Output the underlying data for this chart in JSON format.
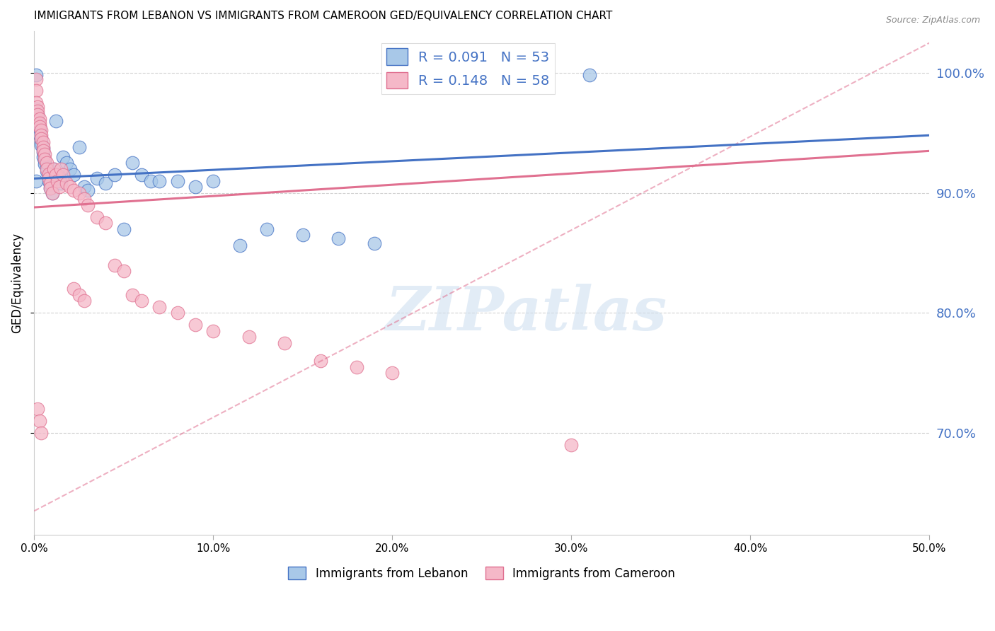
{
  "title": "IMMIGRANTS FROM LEBANON VS IMMIGRANTS FROM CAMEROON GED/EQUIVALENCY CORRELATION CHART",
  "source": "Source: ZipAtlas.com",
  "ylabel": "GED/Equivalency",
  "legend_lebanon": "Immigrants from Lebanon",
  "legend_cameroon": "Immigrants from Cameroon",
  "R_lebanon": 0.091,
  "N_lebanon": 53,
  "R_cameroon": 0.148,
  "N_cameroon": 58,
  "color_lebanon_fill": "#a8c8e8",
  "color_cameroon_fill": "#f5b8c8",
  "color_blue": "#4472c4",
  "color_pink": "#e07090",
  "color_axis_right": "#4472c4",
  "xmin": 0.0,
  "xmax": 0.5,
  "ymin": 0.615,
  "ymax": 1.035,
  "yticks": [
    0.7,
    0.8,
    0.9,
    1.0
  ],
  "blue_line_x": [
    0.0,
    0.5
  ],
  "blue_line_y": [
    0.912,
    0.948
  ],
  "pink_line_x": [
    0.0,
    0.5
  ],
  "pink_line_y": [
    0.888,
    0.935
  ],
  "dash_line_x": [
    0.0,
    0.5
  ],
  "dash_line_y": [
    0.635,
    1.025
  ],
  "watermark_text": "ZIPatlas",
  "figsize": [
    14.06,
    8.92
  ],
  "dpi": 100,
  "leb_x": [
    0.001,
    0.001,
    0.002,
    0.002,
    0.002,
    0.003,
    0.003,
    0.003,
    0.004,
    0.004,
    0.004,
    0.005,
    0.005,
    0.005,
    0.006,
    0.006,
    0.007,
    0.007,
    0.008,
    0.008,
    0.009,
    0.009,
    0.01,
    0.011,
    0.012,
    0.013,
    0.014,
    0.015,
    0.016,
    0.018,
    0.02,
    0.022,
    0.025,
    0.028,
    0.03,
    0.035,
    0.04,
    0.045,
    0.05,
    0.055,
    0.06,
    0.065,
    0.07,
    0.08,
    0.09,
    0.1,
    0.115,
    0.13,
    0.15,
    0.17,
    0.19,
    0.31,
    0.001
  ],
  "leb_y": [
    0.998,
    0.97,
    0.965,
    0.96,
    0.958,
    0.955,
    0.952,
    0.948,
    0.945,
    0.942,
    0.94,
    0.937,
    0.934,
    0.93,
    0.927,
    0.924,
    0.921,
    0.918,
    0.914,
    0.91,
    0.907,
    0.904,
    0.9,
    0.92,
    0.96,
    0.915,
    0.912,
    0.908,
    0.93,
    0.925,
    0.92,
    0.915,
    0.938,
    0.905,
    0.902,
    0.912,
    0.908,
    0.915,
    0.87,
    0.925,
    0.915,
    0.91,
    0.91,
    0.91,
    0.905,
    0.91,
    0.856,
    0.87,
    0.865,
    0.862,
    0.858,
    0.998,
    0.91
  ],
  "cam_x": [
    0.001,
    0.001,
    0.001,
    0.002,
    0.002,
    0.002,
    0.003,
    0.003,
    0.003,
    0.004,
    0.004,
    0.004,
    0.005,
    0.005,
    0.005,
    0.006,
    0.006,
    0.007,
    0.007,
    0.008,
    0.008,
    0.009,
    0.009,
    0.01,
    0.011,
    0.012,
    0.013,
    0.014,
    0.015,
    0.016,
    0.018,
    0.02,
    0.022,
    0.025,
    0.028,
    0.03,
    0.035,
    0.04,
    0.045,
    0.05,
    0.055,
    0.06,
    0.07,
    0.08,
    0.09,
    0.1,
    0.12,
    0.14,
    0.16,
    0.18,
    0.2,
    0.022,
    0.025,
    0.028,
    0.3,
    0.002,
    0.003,
    0.004
  ],
  "cam_y": [
    0.995,
    0.985,
    0.975,
    0.972,
    0.968,
    0.965,
    0.962,
    0.958,
    0.955,
    0.952,
    0.948,
    0.945,
    0.942,
    0.938,
    0.935,
    0.932,
    0.928,
    0.925,
    0.92,
    0.916,
    0.912,
    0.908,
    0.904,
    0.9,
    0.92,
    0.915,
    0.91,
    0.905,
    0.92,
    0.915,
    0.908,
    0.905,
    0.902,
    0.9,
    0.895,
    0.89,
    0.88,
    0.875,
    0.84,
    0.835,
    0.815,
    0.81,
    0.805,
    0.8,
    0.79,
    0.785,
    0.78,
    0.775,
    0.76,
    0.755,
    0.75,
    0.82,
    0.815,
    0.81,
    0.69,
    0.72,
    0.71,
    0.7
  ]
}
